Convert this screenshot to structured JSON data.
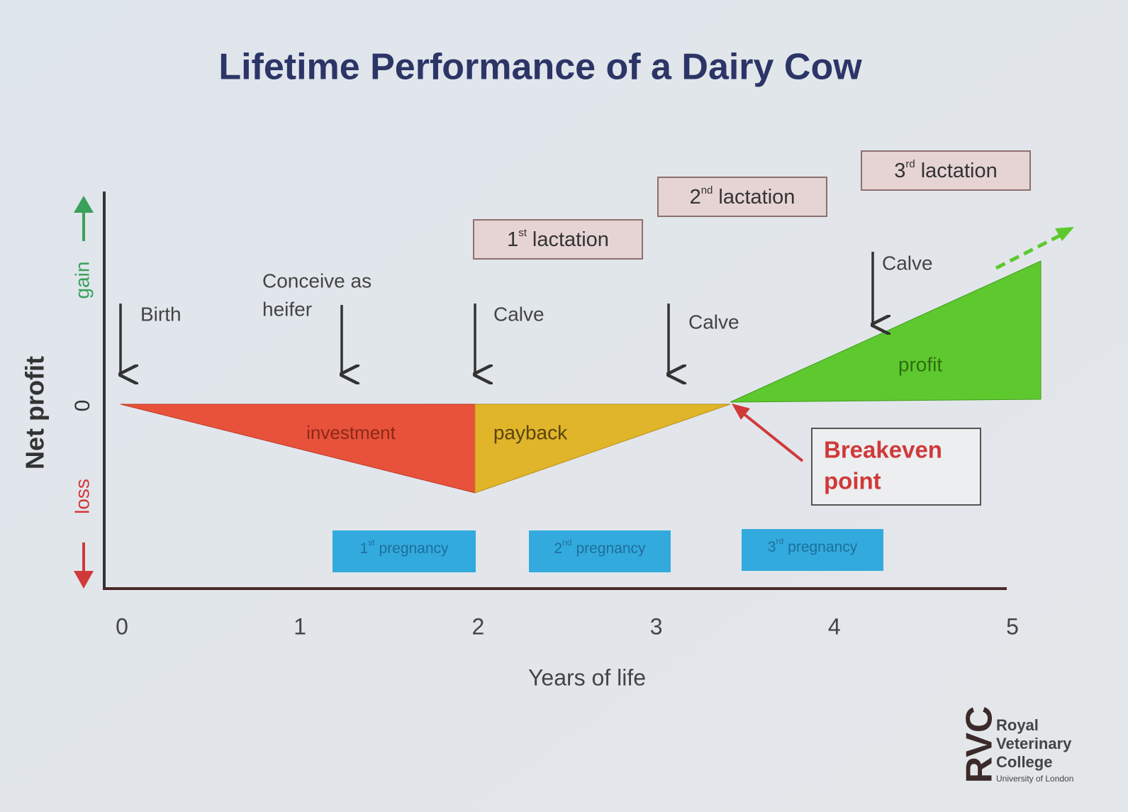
{
  "title": "Lifetime Performance of a Dairy Cow",
  "y_axis": {
    "label": "Net profit",
    "gain": "gain",
    "zero": "0",
    "loss": "loss"
  },
  "x_axis": {
    "label": "Years of life",
    "ticks": [
      0,
      1,
      2,
      3,
      4,
      5
    ]
  },
  "events": [
    {
      "lines": [
        "Birth"
      ]
    },
    {
      "lines": [
        "Conceive as",
        "heifer"
      ]
    },
    {
      "lines": [
        "Calve"
      ]
    },
    {
      "lines": [
        "Calve"
      ]
    },
    {
      "lines": [
        "Calve"
      ]
    }
  ],
  "lactations": [
    {
      "ordinal": "1",
      "suffix": "st",
      "label": "lactation"
    },
    {
      "ordinal": "2",
      "suffix": "nd",
      "label": "lactation"
    },
    {
      "ordinal": "3",
      "suffix": "rd",
      "label": "lactation"
    }
  ],
  "regions": [
    "investment",
    "payback",
    "profit"
  ],
  "breakeven": [
    "Breakeven",
    "point"
  ],
  "pregnancies": [
    {
      "ordinal": "1",
      "suffix": "st",
      "label": "pregnancy"
    },
    {
      "ordinal": "2",
      "suffix": "nd",
      "label": "pregnancy"
    },
    {
      "ordinal": "3",
      "suffix": "rd",
      "label": "pregnancy"
    }
  ],
  "logo": {
    "mark": "RVC",
    "lines": [
      "Royal",
      "Veterinary",
      "College",
      "University of London"
    ]
  }
}
